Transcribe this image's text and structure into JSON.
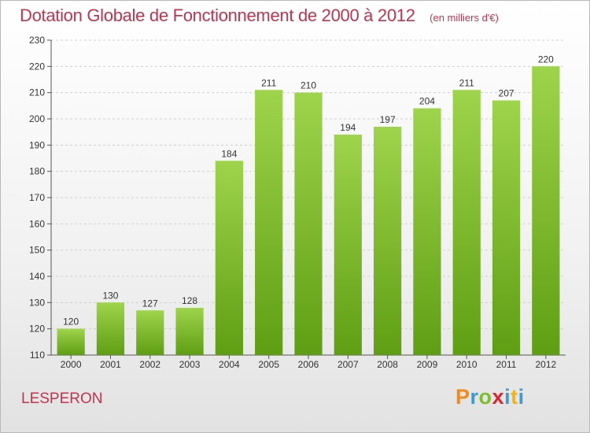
{
  "header": {
    "title": "Dotation Globale de Fonctionnement de 2000 à 2012",
    "unit": "(en milliers d'€)"
  },
  "footer": {
    "commune": "LESPERON",
    "brand": "Proxiti"
  },
  "colors": {
    "bar_top": "#9ed44c",
    "bar_bottom": "#5f9e14",
    "title": "#c0344f",
    "grid": "#cfcfcf"
  },
  "chart_data": {
    "type": "bar",
    "title": "Dotation Globale de Fonctionnement de 2000 à 2012",
    "subtitle": "(en milliers d'€)",
    "xlabel": "",
    "ylabel": "",
    "categories": [
      "2000",
      "2001",
      "2002",
      "2003",
      "2004",
      "2005",
      "2006",
      "2007",
      "2008",
      "2009",
      "2010",
      "2011",
      "2012"
    ],
    "values": [
      120,
      130,
      127,
      128,
      184,
      211,
      210,
      194,
      197,
      204,
      211,
      207,
      220
    ],
    "ylim": [
      110,
      230
    ],
    "yticks": [
      110,
      120,
      130,
      140,
      150,
      160,
      170,
      180,
      190,
      200,
      210,
      220,
      230
    ],
    "grid": true,
    "legend": "none"
  }
}
